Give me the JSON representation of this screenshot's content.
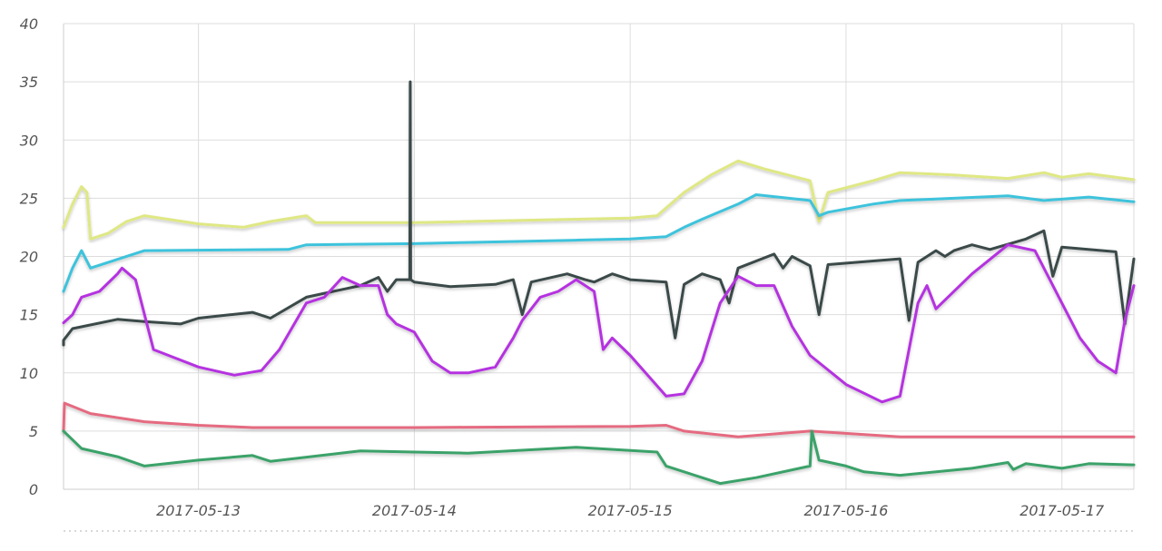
{
  "chart_data": {
    "type": "line",
    "title": "",
    "xlabel": "",
    "ylabel": "",
    "xlim": [
      "2017-05-12T09:00",
      "2017-05-17T08:00"
    ],
    "ylim": [
      0,
      40
    ],
    "yticks": [
      0,
      5,
      10,
      15,
      20,
      25,
      30,
      35,
      40
    ],
    "yticks_labels": [
      "0",
      "5",
      "10",
      "15",
      "20",
      "25",
      "30",
      "35",
      "40"
    ],
    "xticks": [
      "2017-05-13T00:00",
      "2017-05-14T00:00",
      "2017-05-15T00:00",
      "2017-05-16T00:00",
      "2017-05-17T00:00"
    ],
    "xticks_labels": [
      "2017-05-13",
      "2017-05-14",
      "2017-05-15",
      "2017-05-16",
      "2017-05-17"
    ],
    "grid": true,
    "legend": "none",
    "series": [
      {
        "color": "#dfe883",
        "points": [
          [
            "2017-05-12T09:00",
            22.5
          ],
          [
            "2017-05-12T10:00",
            24.5
          ],
          [
            "2017-05-12T11:00",
            26.0
          ],
          [
            "2017-05-12T11:36",
            25.5
          ],
          [
            "2017-05-12T12:00",
            21.5
          ],
          [
            "2017-05-12T14:00",
            22.0
          ],
          [
            "2017-05-12T16:00",
            23.0
          ],
          [
            "2017-05-12T18:00",
            23.5
          ],
          [
            "2017-05-13T00:00",
            22.8
          ],
          [
            "2017-05-13T05:00",
            22.5
          ],
          [
            "2017-05-13T08:00",
            23.0
          ],
          [
            "2017-05-13T12:00",
            23.5
          ],
          [
            "2017-05-13T13:00",
            22.9
          ],
          [
            "2017-05-14T00:00",
            22.9
          ],
          [
            "2017-05-15T00:00",
            23.3
          ],
          [
            "2017-05-15T03:00",
            23.5
          ],
          [
            "2017-05-15T06:00",
            25.5
          ],
          [
            "2017-05-15T09:00",
            27.0
          ],
          [
            "2017-05-15T12:00",
            28.2
          ],
          [
            "2017-05-15T15:00",
            27.5
          ],
          [
            "2017-05-15T20:00",
            26.5
          ],
          [
            "2017-05-15T21:00",
            23.0
          ],
          [
            "2017-05-15T22:00",
            25.5
          ],
          [
            "2017-05-16T03:00",
            26.5
          ],
          [
            "2017-05-16T06:00",
            27.2
          ],
          [
            "2017-05-16T12:00",
            27.0
          ],
          [
            "2017-05-16T18:00",
            26.7
          ],
          [
            "2017-05-16T22:00",
            27.2
          ],
          [
            "2017-05-17T00:00",
            26.8
          ],
          [
            "2017-05-17T03:00",
            27.1
          ],
          [
            "2017-05-17T08:00",
            26.6
          ]
        ]
      },
      {
        "color": "#3ec3dc",
        "points": [
          [
            "2017-05-12T09:00",
            17.0
          ],
          [
            "2017-05-12T10:00",
            19.0
          ],
          [
            "2017-05-12T11:00",
            20.5
          ],
          [
            "2017-05-12T12:00",
            19.0
          ],
          [
            "2017-05-12T14:00",
            19.5
          ],
          [
            "2017-05-12T18:00",
            20.5
          ],
          [
            "2017-05-13T10:00",
            20.6
          ],
          [
            "2017-05-13T12:00",
            21.0
          ],
          [
            "2017-05-14T00:00",
            21.1
          ],
          [
            "2017-05-15T00:00",
            21.5
          ],
          [
            "2017-05-15T04:00",
            21.7
          ],
          [
            "2017-05-15T06:00",
            22.5
          ],
          [
            "2017-05-15T08:00",
            23.2
          ],
          [
            "2017-05-15T12:00",
            24.5
          ],
          [
            "2017-05-15T14:00",
            25.3
          ],
          [
            "2017-05-15T20:00",
            24.8
          ],
          [
            "2017-05-15T21:00",
            23.5
          ],
          [
            "2017-05-15T22:00",
            23.8
          ],
          [
            "2017-05-16T03:00",
            24.5
          ],
          [
            "2017-05-16T06:00",
            24.8
          ],
          [
            "2017-05-16T12:00",
            25.0
          ],
          [
            "2017-05-16T18:00",
            25.2
          ],
          [
            "2017-05-16T22:00",
            24.8
          ],
          [
            "2017-05-17T03:00",
            25.1
          ],
          [
            "2017-05-17T08:00",
            24.7
          ]
        ]
      },
      {
        "color": "#3a4a48",
        "points": [
          [
            "2017-05-12T08:00",
            12.4
          ],
          [
            "2017-05-12T09:00",
            12.8
          ],
          [
            "2017-05-12T10:00",
            13.8
          ],
          [
            "2017-05-12T15:00",
            14.6
          ],
          [
            "2017-05-12T18:00",
            14.4
          ],
          [
            "2017-05-12T22:00",
            14.2
          ],
          [
            "2017-05-13T00:00",
            14.7
          ],
          [
            "2017-05-13T06:00",
            15.2
          ],
          [
            "2017-05-13T08:00",
            14.7
          ],
          [
            "2017-05-13T12:00",
            16.5
          ],
          [
            "2017-05-13T18:00",
            17.5
          ],
          [
            "2017-05-13T20:00",
            18.2
          ],
          [
            "2017-05-13T21:00",
            17.0
          ],
          [
            "2017-05-13T22:00",
            18.0
          ],
          [
            "2017-05-13T23:30",
            18.0
          ],
          [
            "2017-05-13T23:33",
            35.0
          ],
          [
            "2017-05-13T23:36",
            18.0
          ],
          [
            "2017-05-14T00:00",
            17.8
          ],
          [
            "2017-05-14T04:00",
            17.4
          ],
          [
            "2017-05-14T09:00",
            17.6
          ],
          [
            "2017-05-14T11:00",
            18.0
          ],
          [
            "2017-05-14T12:00",
            15.0
          ],
          [
            "2017-05-14T13:00",
            17.8
          ],
          [
            "2017-05-14T17:00",
            18.5
          ],
          [
            "2017-05-14T19:00",
            18.0
          ],
          [
            "2017-05-14T20:00",
            17.8
          ],
          [
            "2017-05-14T22:00",
            18.5
          ],
          [
            "2017-05-15T00:00",
            18.0
          ],
          [
            "2017-05-15T04:00",
            17.8
          ],
          [
            "2017-05-15T05:00",
            13.0
          ],
          [
            "2017-05-15T06:00",
            17.6
          ],
          [
            "2017-05-15T08:00",
            18.5
          ],
          [
            "2017-05-15T10:00",
            18.0
          ],
          [
            "2017-05-15T11:00",
            16.0
          ],
          [
            "2017-05-15T12:00",
            19.0
          ],
          [
            "2017-05-15T16:00",
            20.2
          ],
          [
            "2017-05-15T17:00",
            19.0
          ],
          [
            "2017-05-15T18:00",
            20.0
          ],
          [
            "2017-05-15T20:00",
            19.2
          ],
          [
            "2017-05-15T21:00",
            15.0
          ],
          [
            "2017-05-15T22:00",
            19.3
          ],
          [
            "2017-05-16T06:00",
            19.8
          ],
          [
            "2017-05-16T07:00",
            14.5
          ],
          [
            "2017-05-16T08:00",
            19.5
          ],
          [
            "2017-05-16T10:00",
            20.5
          ],
          [
            "2017-05-16T11:00",
            20.0
          ],
          [
            "2017-05-16T12:00",
            20.5
          ],
          [
            "2017-05-16T14:00",
            21.0
          ],
          [
            "2017-05-16T16:00",
            20.6
          ],
          [
            "2017-05-16T20:00",
            21.5
          ],
          [
            "2017-05-16T22:00",
            22.2
          ],
          [
            "2017-05-16T23:00",
            18.3
          ],
          [
            "2017-05-17T00:00",
            20.8
          ],
          [
            "2017-05-17T06:00",
            20.4
          ],
          [
            "2017-05-17T07:00",
            14.2
          ],
          [
            "2017-05-17T08:00",
            19.8
          ]
        ]
      },
      {
        "color": "#b533e0",
        "points": [
          [
            "2017-05-12T09:00",
            14.3
          ],
          [
            "2017-05-12T10:00",
            15.0
          ],
          [
            "2017-05-12T11:00",
            16.5
          ],
          [
            "2017-05-12T13:00",
            17.0
          ],
          [
            "2017-05-12T15:00",
            18.5
          ],
          [
            "2017-05-12T15:30",
            19.0
          ],
          [
            "2017-05-12T17:00",
            18.0
          ],
          [
            "2017-05-12T19:00",
            12.0
          ],
          [
            "2017-05-13T00:00",
            10.5
          ],
          [
            "2017-05-13T04:00",
            9.8
          ],
          [
            "2017-05-13T07:00",
            10.2
          ],
          [
            "2017-05-13T09:00",
            12.0
          ],
          [
            "2017-05-13T12:00",
            16.0
          ],
          [
            "2017-05-13T14:00",
            16.5
          ],
          [
            "2017-05-13T16:00",
            18.2
          ],
          [
            "2017-05-13T18:00",
            17.5
          ],
          [
            "2017-05-13T20:00",
            17.5
          ],
          [
            "2017-05-13T21:00",
            15.0
          ],
          [
            "2017-05-13T22:00",
            14.2
          ],
          [
            "2017-05-14T00:00",
            13.5
          ],
          [
            "2017-05-14T02:00",
            11.0
          ],
          [
            "2017-05-14T04:00",
            10.0
          ],
          [
            "2017-05-14T06:00",
            10.0
          ],
          [
            "2017-05-14T09:00",
            10.5
          ],
          [
            "2017-05-14T11:00",
            13.0
          ],
          [
            "2017-05-14T12:00",
            14.5
          ],
          [
            "2017-05-14T14:00",
            16.5
          ],
          [
            "2017-05-14T16:00",
            17.0
          ],
          [
            "2017-05-14T18:00",
            18.0
          ],
          [
            "2017-05-14T20:00",
            17.0
          ],
          [
            "2017-05-14T21:00",
            12.0
          ],
          [
            "2017-05-14T22:00",
            13.0
          ],
          [
            "2017-05-15T00:00",
            11.5
          ],
          [
            "2017-05-15T04:00",
            8.0
          ],
          [
            "2017-05-15T06:00",
            8.2
          ],
          [
            "2017-05-15T08:00",
            11.0
          ],
          [
            "2017-05-15T10:00",
            16.0
          ],
          [
            "2017-05-15T12:00",
            18.3
          ],
          [
            "2017-05-15T14:00",
            17.5
          ],
          [
            "2017-05-15T16:00",
            17.5
          ],
          [
            "2017-05-15T18:00",
            14.0
          ],
          [
            "2017-05-15T20:00",
            11.5
          ],
          [
            "2017-05-16T00:00",
            9.0
          ],
          [
            "2017-05-16T04:00",
            7.5
          ],
          [
            "2017-05-16T06:00",
            8.0
          ],
          [
            "2017-05-16T08:00",
            16.0
          ],
          [
            "2017-05-16T09:00",
            17.5
          ],
          [
            "2017-05-16T10:00",
            15.5
          ],
          [
            "2017-05-16T14:00",
            18.5
          ],
          [
            "2017-05-16T18:00",
            21.0
          ],
          [
            "2017-05-16T21:00",
            20.5
          ],
          [
            "2017-05-16T22:00",
            19.0
          ],
          [
            "2017-05-17T00:00",
            16.0
          ],
          [
            "2017-05-17T02:00",
            13.0
          ],
          [
            "2017-05-17T04:00",
            11.0
          ],
          [
            "2017-05-17T06:00",
            10.0
          ],
          [
            "2017-05-17T07:00",
            14.5
          ],
          [
            "2017-05-17T08:00",
            17.5
          ]
        ]
      },
      {
        "color": "#e56b80",
        "points": [
          [
            "2017-05-12T09:00",
            5.0
          ],
          [
            "2017-05-12T09:06",
            7.4
          ],
          [
            "2017-05-12T12:00",
            6.5
          ],
          [
            "2017-05-12T18:00",
            5.8
          ],
          [
            "2017-05-13T00:00",
            5.5
          ],
          [
            "2017-05-13T06:00",
            5.3
          ],
          [
            "2017-05-14T00:00",
            5.3
          ],
          [
            "2017-05-15T00:00",
            5.4
          ],
          [
            "2017-05-15T04:00",
            5.5
          ],
          [
            "2017-05-15T06:00",
            5.0
          ],
          [
            "2017-05-15T12:00",
            4.5
          ],
          [
            "2017-05-15T20:00",
            5.0
          ],
          [
            "2017-05-16T06:00",
            4.5
          ],
          [
            "2017-05-17T08:00",
            4.5
          ]
        ]
      },
      {
        "color": "#3aa269",
        "points": [
          [
            "2017-05-12T09:00",
            5.0
          ],
          [
            "2017-05-12T11:00",
            3.5
          ],
          [
            "2017-05-12T15:00",
            2.8
          ],
          [
            "2017-05-12T18:00",
            2.0
          ],
          [
            "2017-05-13T00:00",
            2.5
          ],
          [
            "2017-05-13T06:00",
            2.9
          ],
          [
            "2017-05-13T08:00",
            2.4
          ],
          [
            "2017-05-13T18:00",
            3.3
          ],
          [
            "2017-05-14T00:00",
            3.2
          ],
          [
            "2017-05-14T06:00",
            3.1
          ],
          [
            "2017-05-14T18:00",
            3.6
          ],
          [
            "2017-05-15T03:00",
            3.2
          ],
          [
            "2017-05-15T04:00",
            2.0
          ],
          [
            "2017-05-15T08:00",
            1.0
          ],
          [
            "2017-05-15T10:00",
            0.5
          ],
          [
            "2017-05-15T14:00",
            1.0
          ],
          [
            "2017-05-15T20:00",
            2.0
          ],
          [
            "2017-05-15T20:12",
            5.0
          ],
          [
            "2017-05-15T21:00",
            2.5
          ],
          [
            "2017-05-16T00:00",
            2.0
          ],
          [
            "2017-05-16T02:00",
            1.5
          ],
          [
            "2017-05-16T06:00",
            1.2
          ],
          [
            "2017-05-16T14:00",
            1.8
          ],
          [
            "2017-05-16T18:00",
            2.3
          ],
          [
            "2017-05-16T18:36",
            1.7
          ],
          [
            "2017-05-16T20:00",
            2.2
          ],
          [
            "2017-05-17T00:00",
            1.8
          ],
          [
            "2017-05-17T03:00",
            2.2
          ],
          [
            "2017-05-17T08:00",
            2.1
          ]
        ]
      }
    ]
  }
}
